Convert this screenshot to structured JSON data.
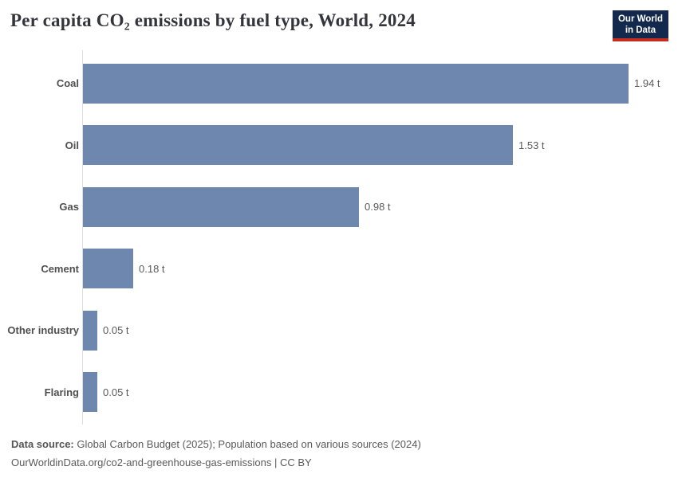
{
  "header": {
    "title": "Per capita CO₂ emissions by fuel type, World, 2024",
    "logo": {
      "line1": "Our World",
      "line2": "in Data"
    }
  },
  "chart_data": {
    "type": "bar",
    "orientation": "horizontal",
    "title": "Per capita CO₂ emissions by fuel type, World, 2024",
    "categories": [
      "Coal",
      "Oil",
      "Gas",
      "Cement",
      "Other industry",
      "Flaring"
    ],
    "values": [
      1.94,
      1.53,
      0.98,
      0.18,
      0.05,
      0.05
    ],
    "value_labels": [
      "1.94 t",
      "1.53 t",
      "0.98 t",
      "0.18 t",
      "0.05 t",
      "0.05 t"
    ],
    "unit": "t",
    "xlabel": "",
    "ylabel": "",
    "xlim": [
      0,
      2.0
    ],
    "grid": false,
    "legend": "none",
    "bar_color": "#6e87ae"
  },
  "footer": {
    "datasource_label": "Data source:",
    "datasource_text": " Global Carbon Budget (2025); Population based on various sources (2024)",
    "url_line": "OurWorldinData.org/co2-and-greenhouse-gas-emissions | CC BY"
  },
  "colors": {
    "bar": "#6e87ae",
    "axis_line": "#dedede",
    "title_text": "#34343c",
    "label_text": "#4f4f4f",
    "value_text": "#5a5a5a",
    "logo_bg": "#12294d",
    "logo_accent": "#c22d1f"
  }
}
